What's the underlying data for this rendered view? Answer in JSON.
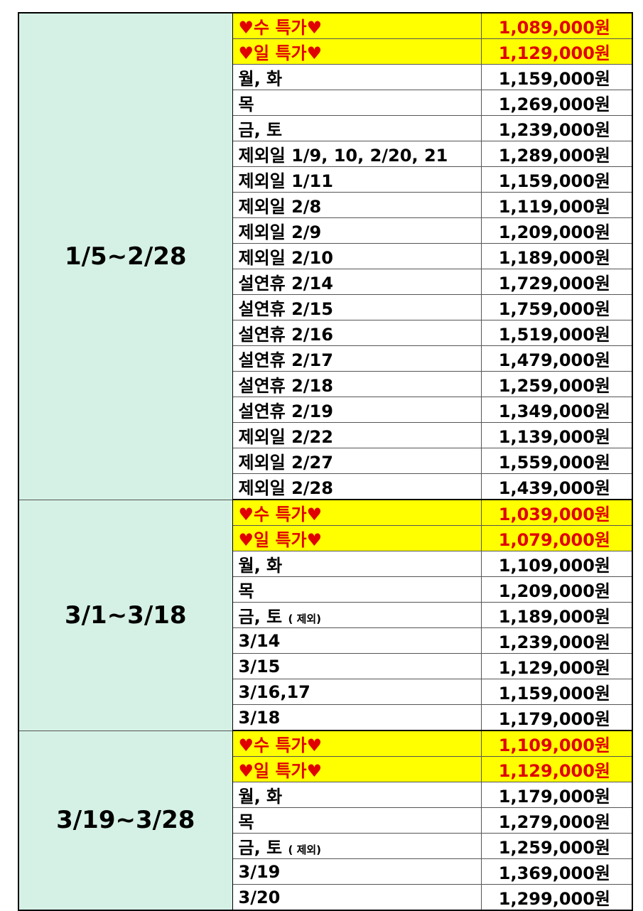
{
  "highlight_color": "#ffff00",
  "special_text_color": "#e00000",
  "period_bg_color": "#d5f1e6",
  "sections": [
    {
      "period": "1/5~2/28",
      "rows": [
        {
          "label": "♥수 특가♥",
          "price": "1,089,000원",
          "special": true
        },
        {
          "label": "♥일 특가♥",
          "price": "1,129,000원",
          "special": true
        },
        {
          "label": "월, 화",
          "price": "1,159,000원"
        },
        {
          "label": "목",
          "price": "1,269,000원"
        },
        {
          "label": "금, 토",
          "price": "1,239,000원"
        },
        {
          "label": "제외일 1/9, 10, 2/20, 21",
          "price": "1,289,000원"
        },
        {
          "label": "제외일 1/11",
          "price": "1,159,000원"
        },
        {
          "label": "제외일 2/8",
          "price": "1,119,000원"
        },
        {
          "label": "제외일 2/9",
          "price": "1,209,000원"
        },
        {
          "label": "제외일 2/10",
          "price": "1,189,000원"
        },
        {
          "label": "설연휴 2/14",
          "price": "1,729,000원"
        },
        {
          "label": "설연휴 2/15",
          "price": "1,759,000원"
        },
        {
          "label": "설연휴 2/16",
          "price": "1,519,000원"
        },
        {
          "label": "설연휴 2/17",
          "price": "1,479,000원"
        },
        {
          "label": "설연휴 2/18",
          "price": "1,259,000원"
        },
        {
          "label": "설연휴 2/19",
          "price": "1,349,000원"
        },
        {
          "label": "제외일 2/22",
          "price": "1,139,000원"
        },
        {
          "label": "제외일 2/27",
          "price": "1,559,000원"
        },
        {
          "label": "제외일 2/28",
          "price": "1,439,000원"
        }
      ]
    },
    {
      "period": "3/1~3/18",
      "rows": [
        {
          "label": "♥수 특가♥",
          "price": "1,039,000원",
          "special": true
        },
        {
          "label": "♥일 특가♥",
          "price": "1,079,000원",
          "special": true
        },
        {
          "label": "월, 화",
          "price": "1,109,000원"
        },
        {
          "label": "목",
          "price": "1,209,000원"
        },
        {
          "label": "금, 토",
          "note": "( 제외)",
          "price": "1,189,000원"
        },
        {
          "label": "3/14",
          "price": "1,239,000원"
        },
        {
          "label": "3/15",
          "price": "1,129,000원"
        },
        {
          "label": "3/16,17",
          "price": "1,159,000원"
        },
        {
          "label": "3/18",
          "price": "1,179,000원"
        }
      ]
    },
    {
      "period": "3/19~3/28",
      "rows": [
        {
          "label": "♥수 특가♥",
          "price": "1,109,000원",
          "special": true
        },
        {
          "label": "♥일 특가♥",
          "price": "1,129,000원",
          "special": true
        },
        {
          "label": "월, 화",
          "price": "1,179,000원"
        },
        {
          "label": "목",
          "price": "1,279,000원"
        },
        {
          "label": "금, 토",
          "note": "( 제외)",
          "price": "1,259,000원"
        },
        {
          "label": "3/19",
          "price": "1,369,000원"
        },
        {
          "label": "3/20",
          "price": "1,299,000원"
        }
      ]
    }
  ]
}
